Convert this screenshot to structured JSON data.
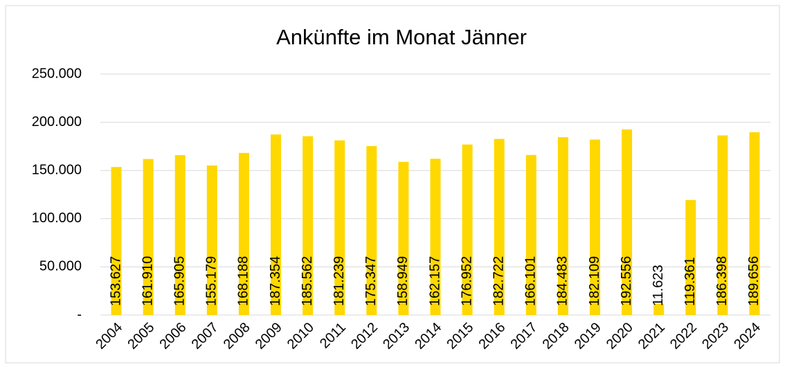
{
  "chart_data": {
    "type": "bar",
    "title": "Ankünfte im Monat Jänner",
    "categories": [
      "2004",
      "2005",
      "2006",
      "2007",
      "2008",
      "2009",
      "2010",
      "2011",
      "2012",
      "2013",
      "2014",
      "2015",
      "2016",
      "2017",
      "2018",
      "2019",
      "2020",
      "2021",
      "2022",
      "2023",
      "2024"
    ],
    "values": [
      153627,
      161910,
      165905,
      155179,
      168188,
      187354,
      185562,
      181239,
      175347,
      158949,
      162157,
      176952,
      182722,
      166101,
      184483,
      182109,
      192556,
      11623,
      119361,
      186398,
      189656
    ],
    "value_labels": [
      "153.627",
      "161.910",
      "165.905",
      "155.179",
      "168.188",
      "187.354",
      "185.562",
      "181.239",
      "175.347",
      "158.949",
      "162.157",
      "176.952",
      "182.722",
      "166.101",
      "184.483",
      "182.109",
      "192.556",
      "11.623",
      "119.361",
      "186.398",
      "189.656"
    ],
    "color": "#ffd800",
    "ylim": [
      0,
      250000
    ],
    "yticks": [
      {
        "value": 0,
        "label": "-"
      },
      {
        "value": 50000,
        "label": "50.000"
      },
      {
        "value": 100000,
        "label": "100.000"
      },
      {
        "value": 150000,
        "label": "150.000"
      },
      {
        "value": 200000,
        "label": "200.000"
      },
      {
        "value": 250000,
        "label": "250.000"
      }
    ],
    "grid": true
  }
}
